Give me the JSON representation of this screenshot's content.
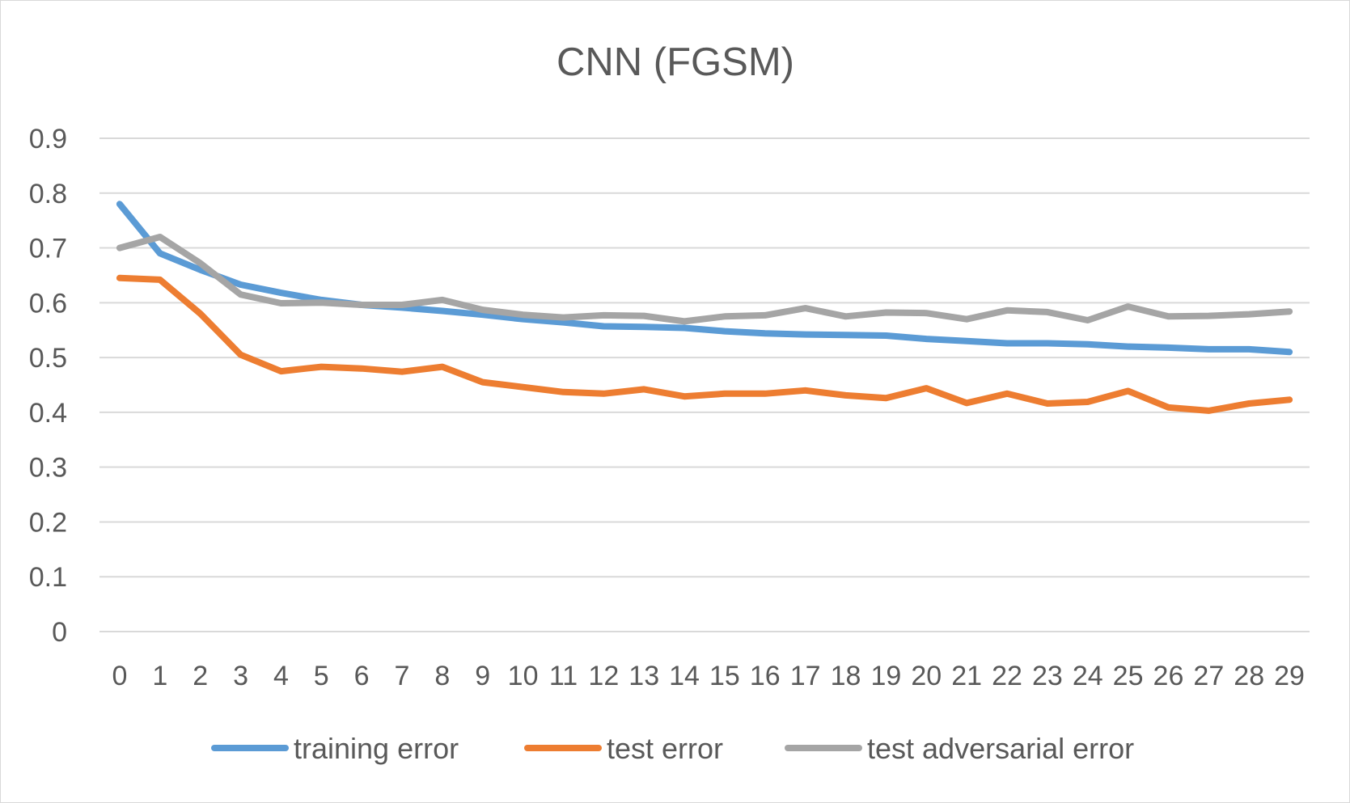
{
  "chart_data": {
    "type": "line",
    "title": "CNN (FGSM)",
    "xlabel": "",
    "ylabel": "",
    "ylim": [
      0,
      0.9
    ],
    "grid": true,
    "legend_position": "bottom",
    "x": [
      0,
      1,
      2,
      3,
      4,
      5,
      6,
      7,
      8,
      9,
      10,
      11,
      12,
      13,
      14,
      15,
      16,
      17,
      18,
      19,
      20,
      21,
      22,
      23,
      24,
      25,
      26,
      27,
      28,
      29
    ],
    "x_tick_labels": [
      "0",
      "1",
      "2",
      "3",
      "4",
      "5",
      "6",
      "7",
      "8",
      "9",
      "10",
      "11",
      "12",
      "13",
      "14",
      "15",
      "16",
      "17",
      "18",
      "19",
      "20",
      "21",
      "22",
      "23",
      "24",
      "25",
      "26",
      "27",
      "28",
      "29"
    ],
    "y_ticks": [
      0,
      0.1,
      0.2,
      0.3,
      0.4,
      0.5,
      0.6,
      0.7,
      0.8,
      0.9
    ],
    "y_tick_labels": [
      "0",
      "0.1",
      "0.2",
      "0.3",
      "0.4",
      "0.5",
      "0.6",
      "0.7",
      "0.8",
      "0.9"
    ],
    "series": [
      {
        "name": "training error",
        "color": "#5b9bd5",
        "values": [
          0.78,
          0.69,
          0.66,
          0.633,
          0.618,
          0.605,
          0.596,
          0.591,
          0.585,
          0.578,
          0.57,
          0.564,
          0.557,
          0.556,
          0.554,
          0.548,
          0.544,
          0.542,
          0.541,
          0.54,
          0.534,
          0.53,
          0.526,
          0.526,
          0.524,
          0.52,
          0.518,
          0.515,
          0.515,
          0.51
        ]
      },
      {
        "name": "test error",
        "color": "#ed7d31",
        "values": [
          0.645,
          0.642,
          0.58,
          0.505,
          0.475,
          0.483,
          0.48,
          0.474,
          0.483,
          0.455,
          0.446,
          0.437,
          0.434,
          0.442,
          0.429,
          0.434,
          0.434,
          0.44,
          0.431,
          0.426,
          0.444,
          0.417,
          0.434,
          0.416,
          0.419,
          0.439,
          0.409,
          0.403,
          0.416,
          0.423
        ]
      },
      {
        "name": "test adversarial error",
        "color": "#a5a5a5",
        "values": [
          0.7,
          0.72,
          0.672,
          0.615,
          0.599,
          0.6,
          0.596,
          0.596,
          0.605,
          0.587,
          0.578,
          0.573,
          0.577,
          0.576,
          0.566,
          0.575,
          0.577,
          0.59,
          0.575,
          0.582,
          0.581,
          0.57,
          0.586,
          0.583,
          0.568,
          0.593,
          0.575,
          0.576,
          0.579,
          0.584
        ]
      }
    ]
  }
}
